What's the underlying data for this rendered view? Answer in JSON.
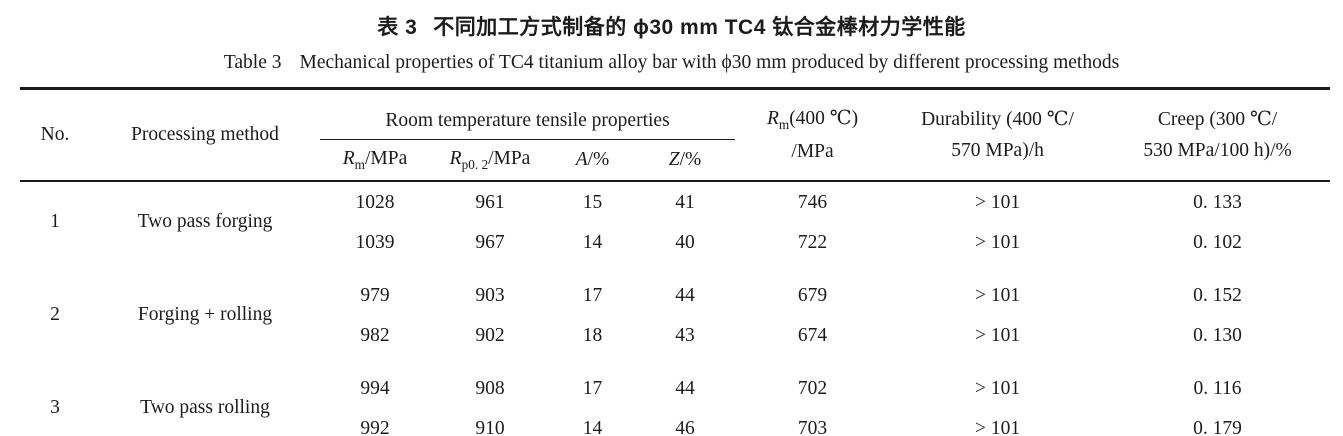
{
  "caption": {
    "cn_label": "表 3",
    "cn_text": "不同加工方式制备的 ϕ30 mm TC4 钛合金棒材力学性能",
    "en_label": "Table 3",
    "en_text": "Mechanical properties of TC4 titanium alloy bar with ϕ30 mm produced by different processing methods"
  },
  "table": {
    "headers": {
      "no": "No.",
      "method": "Processing method",
      "rt_group": "Room temperature tensile properties",
      "rm": {
        "sym": "R",
        "sub": "m",
        "rest": "/MPa"
      },
      "rp": {
        "sym": "R",
        "sub": "p0. 2",
        "rest": "/MPa"
      },
      "a": {
        "sym": "A",
        "rest": "/%"
      },
      "z": {
        "sym": "Z",
        "rest": "/%"
      },
      "rm400": {
        "sym": "R",
        "sub": "m",
        "rest": "(400 ℃)",
        "line2": "/MPa"
      },
      "durability": {
        "line1": "Durability (400 ℃/",
        "line2": "570 MPa)/h"
      },
      "creep": {
        "line1": "Creep (300 ℃/",
        "line2": "530 MPa/100 h)/%"
      }
    },
    "groups": [
      {
        "no": "1",
        "method": "Two pass forging",
        "rows": [
          [
            "1028",
            "961",
            "15",
            "41",
            "746",
            "> 101",
            "0. 133"
          ],
          [
            "1039",
            "967",
            "14",
            "40",
            "722",
            "> 101",
            "0. 102"
          ]
        ]
      },
      {
        "no": "2",
        "method": "Forging + rolling",
        "rows": [
          [
            "979",
            "903",
            "17",
            "44",
            "679",
            "> 101",
            "0. 152"
          ],
          [
            "982",
            "902",
            "18",
            "43",
            "674",
            "> 101",
            "0. 130"
          ]
        ]
      },
      {
        "no": "3",
        "method": "Two pass rolling",
        "rows": [
          [
            "994",
            "908",
            "17",
            "44",
            "702",
            "> 101",
            "0. 116"
          ],
          [
            "992",
            "910",
            "14",
            "46",
            "703",
            "> 101",
            "0. 179"
          ]
        ]
      }
    ]
  },
  "colors": {
    "background": "#ffffff",
    "text": "#1c1c1c",
    "rule": "#1a1a1a"
  }
}
